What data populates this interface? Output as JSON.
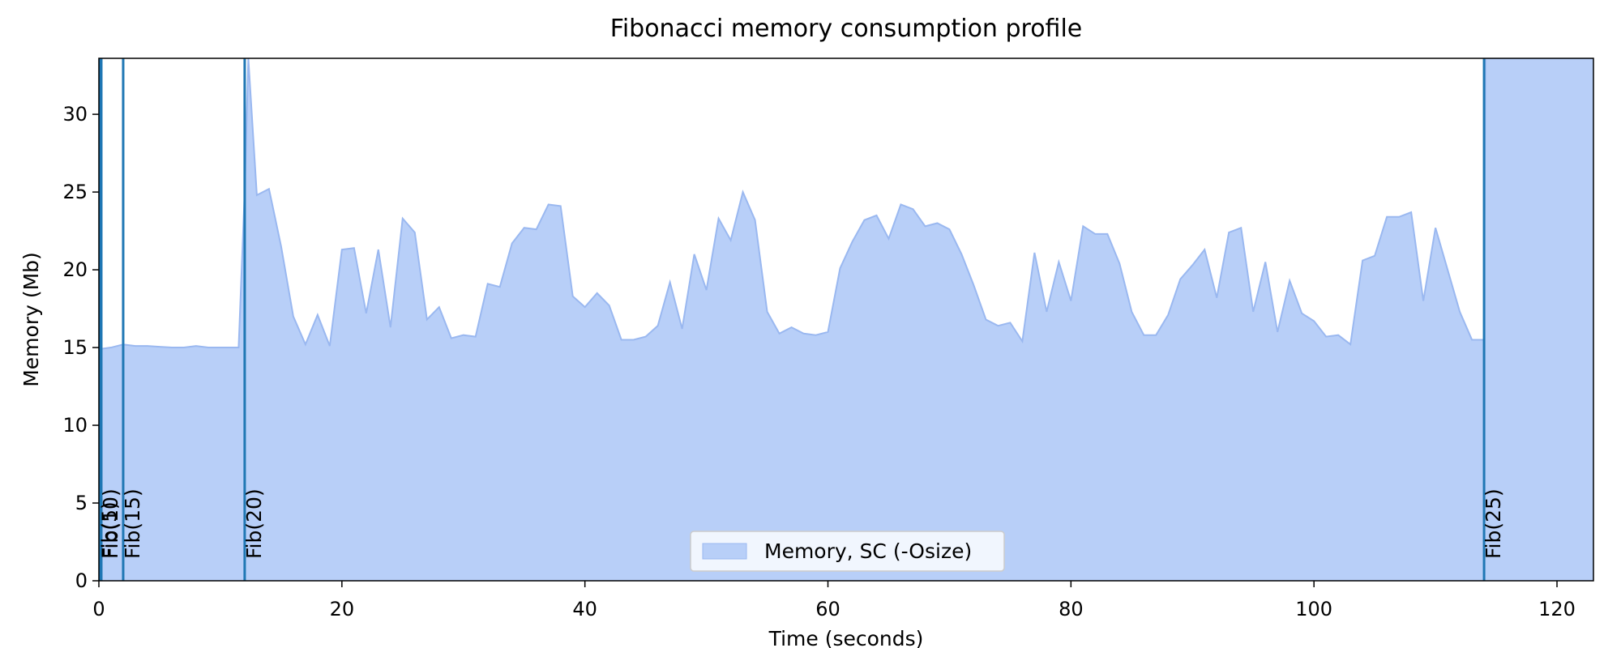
{
  "chart_data": {
    "type": "area",
    "title": "Fibonacci memory consumption profile",
    "xlabel": "Time (seconds)",
    "ylabel": "Memory (Mb)",
    "xlim": [
      0,
      123
    ],
    "ylim": [
      0,
      33.6
    ],
    "xticks": [
      0,
      20,
      40,
      60,
      80,
      100,
      120
    ],
    "yticks": [
      0,
      5,
      10,
      15,
      20,
      25,
      30
    ],
    "grid": false,
    "legend_position": "lower-center",
    "colors": {
      "fill": "#b8cff8",
      "line": "#9ab8f0",
      "marker": "#1f77b4"
    },
    "series": [
      {
        "name": "Memory, SC (-Osize)",
        "x": [
          0,
          1,
          2,
          3,
          4,
          5,
          6,
          7,
          8,
          9,
          10,
          11,
          11.5,
          12,
          12.3,
          13,
          14,
          15,
          16,
          17,
          18,
          19,
          20,
          21,
          22,
          23,
          24,
          25,
          26,
          27,
          28,
          29,
          30,
          31,
          32,
          33,
          34,
          35,
          36,
          37,
          38,
          39,
          40,
          41,
          42,
          43,
          44,
          45,
          46,
          47,
          48,
          49,
          50,
          51,
          52,
          53,
          54,
          55,
          56,
          57,
          58,
          59,
          60,
          61,
          62,
          63,
          64,
          65,
          66,
          67,
          68,
          69,
          70,
          71,
          72,
          73,
          74,
          75,
          76,
          77,
          78,
          79,
          80,
          81,
          82,
          83,
          84,
          85,
          86,
          87,
          88,
          89,
          90,
          91,
          92,
          93,
          94,
          95,
          96,
          97,
          98,
          99,
          100,
          101,
          102,
          103,
          104,
          105,
          106,
          107,
          108,
          109,
          110,
          111,
          112,
          113,
          114,
          114.1,
          123
        ],
        "values": [
          14.9,
          15.0,
          15.2,
          15.1,
          15.1,
          15.05,
          15.0,
          15.0,
          15.1,
          15.0,
          15.0,
          15.0,
          15.0,
          25.0,
          33.6,
          24.8,
          25.2,
          21.5,
          17.0,
          15.2,
          17.1,
          15.1,
          21.3,
          21.4,
          17.2,
          21.3,
          16.3,
          23.3,
          22.4,
          16.8,
          17.6,
          15.6,
          15.8,
          15.7,
          19.1,
          18.9,
          21.7,
          22.7,
          22.6,
          24.2,
          24.1,
          18.3,
          17.6,
          18.5,
          17.7,
          15.5,
          15.5,
          15.7,
          16.4,
          19.2,
          16.2,
          21.0,
          18.7,
          23.3,
          21.9,
          25.0,
          23.2,
          17.3,
          15.9,
          16.3,
          15.9,
          15.8,
          16.0,
          20.1,
          21.8,
          23.2,
          23.5,
          22.0,
          24.2,
          23.9,
          22.8,
          23.0,
          22.6,
          21.0,
          19.0,
          16.8,
          16.4,
          16.6,
          15.4,
          21.1,
          17.3,
          20.5,
          18.0,
          22.8,
          22.3,
          22.3,
          20.4,
          17.3,
          15.8,
          15.8,
          17.1,
          19.4,
          20.3,
          21.3,
          18.2,
          22.4,
          22.7,
          17.3,
          20.5,
          16.0,
          19.3,
          17.2,
          16.7,
          15.7,
          15.8,
          15.2,
          20.6,
          20.9,
          23.4,
          23.4,
          23.7,
          18.0,
          22.7,
          20.0,
          17.3,
          15.5,
          15.5,
          33.6,
          33.6
        ]
      }
    ],
    "annotations": [
      {
        "x": 0.1,
        "label": "Fib(5)"
      },
      {
        "x": 0.2,
        "label": "Fib(10)"
      },
      {
        "x": 2.0,
        "label": "Fib(15)"
      },
      {
        "x": 12.0,
        "label": "Fib(20)"
      },
      {
        "x": 114.0,
        "label": "Fib(25)"
      }
    ]
  }
}
